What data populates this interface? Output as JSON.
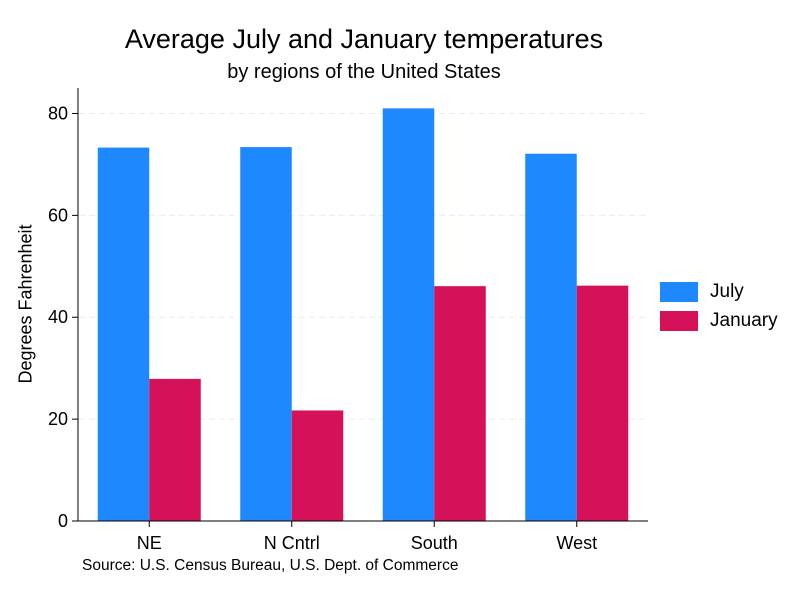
{
  "chart_data": {
    "type": "bar",
    "title": "Average July and January temperatures",
    "subtitle": "by regions of the United States",
    "ylabel": "Degrees Fahrenheit",
    "xlabel": "",
    "note": "Source: U.S. Census Bureau, U.S. Dept. of Commerce",
    "categories": [
      "NE",
      "N Cntrl",
      "South",
      "West"
    ],
    "series": [
      {
        "name": "July",
        "color": "#1e88ff",
        "values": [
          73.3,
          73.4,
          81.0,
          72.1
        ]
      },
      {
        "name": "January",
        "color": "#d41159",
        "values": [
          27.9,
          21.7,
          46.1,
          46.2
        ]
      }
    ],
    "ylim": [
      0,
      85
    ],
    "yticks": [
      0,
      20,
      40,
      60,
      80
    ],
    "grid": true,
    "legend_position": "right"
  }
}
